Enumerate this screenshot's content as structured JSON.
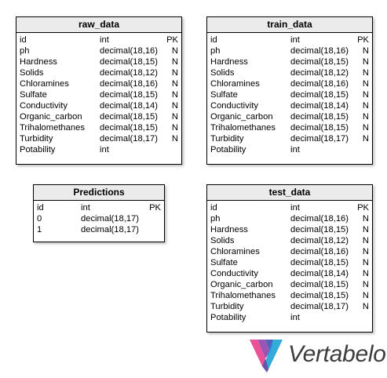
{
  "tables": {
    "raw_data": {
      "title": "raw_data",
      "columns": [
        {
          "name": "id",
          "type": "int",
          "flag": "PK"
        },
        {
          "name": "ph",
          "type": "decimal(18,16)",
          "flag": "N"
        },
        {
          "name": "Hardness",
          "type": "decimal(18,15)",
          "flag": "N"
        },
        {
          "name": "Solids",
          "type": "decimal(18,12)",
          "flag": "N"
        },
        {
          "name": "Chloramines",
          "type": "decimal(18,16)",
          "flag": "N"
        },
        {
          "name": "Sulfate",
          "type": "decimal(18,15)",
          "flag": "N"
        },
        {
          "name": "Conductivity",
          "type": "decimal(18,14)",
          "flag": "N"
        },
        {
          "name": "Organic_carbon",
          "type": "decimal(18,15)",
          "flag": "N"
        },
        {
          "name": "Trihalomethanes",
          "type": "decimal(18,15)",
          "flag": "N"
        },
        {
          "name": "Turbidity",
          "type": "decimal(18,17)",
          "flag": "N"
        },
        {
          "name": "Potability",
          "type": "int",
          "flag": ""
        }
      ]
    },
    "train_data": {
      "title": "train_data",
      "columns": [
        {
          "name": "id",
          "type": "int",
          "flag": "PK"
        },
        {
          "name": "ph",
          "type": "decimal(18,16)",
          "flag": "N"
        },
        {
          "name": "Hardness",
          "type": "decimal(18,15)",
          "flag": "N"
        },
        {
          "name": "Solids",
          "type": "decimal(18,12)",
          "flag": "N"
        },
        {
          "name": "Chloramines",
          "type": "decimal(18,16)",
          "flag": "N"
        },
        {
          "name": "Sulfate",
          "type": "decimal(18,15)",
          "flag": "N"
        },
        {
          "name": "Conductivity",
          "type": "decimal(18,14)",
          "flag": "N"
        },
        {
          "name": "Organic_carbon",
          "type": "decimal(18,15)",
          "flag": "N"
        },
        {
          "name": "Trihalomethanes",
          "type": "decimal(18,15)",
          "flag": "N"
        },
        {
          "name": "Turbidity",
          "type": "decimal(18,17)",
          "flag": "N"
        },
        {
          "name": "Potability",
          "type": "int",
          "flag": ""
        }
      ]
    },
    "predictions": {
      "title": "Predictions",
      "columns": [
        {
          "name": "id",
          "type": "int",
          "flag": "PK"
        },
        {
          "name": "0",
          "type": "decimal(18,17)",
          "flag": ""
        },
        {
          "name": "1",
          "type": "decimal(18,17)",
          "flag": ""
        }
      ]
    },
    "test_data": {
      "title": "test_data",
      "columns": [
        {
          "name": "id",
          "type": "int",
          "flag": "PK"
        },
        {
          "name": "ph",
          "type": "decimal(18,16)",
          "flag": "N"
        },
        {
          "name": "Hardness",
          "type": "decimal(18,15)",
          "flag": "N"
        },
        {
          "name": "Solids",
          "type": "decimal(18,12)",
          "flag": "N"
        },
        {
          "name": "Chloramines",
          "type": "decimal(18,16)",
          "flag": "N"
        },
        {
          "name": "Sulfate",
          "type": "decimal(18,15)",
          "flag": "N"
        },
        {
          "name": "Conductivity",
          "type": "decimal(18,14)",
          "flag": "N"
        },
        {
          "name": "Organic_carbon",
          "type": "decimal(18,15)",
          "flag": "N"
        },
        {
          "name": "Trihalomethanes",
          "type": "decimal(18,15)",
          "flag": "N"
        },
        {
          "name": "Turbidity",
          "type": "decimal(18,17)",
          "flag": "N"
        },
        {
          "name": "Potability",
          "type": "int",
          "flag": ""
        }
      ]
    }
  },
  "logo": {
    "text": "Vertabelo",
    "icon": "vertabelo-logo-icon",
    "colors": [
      "#e83e8c",
      "#8e44ad",
      "#3f51b5",
      "#1fa2d6"
    ]
  },
  "colors": {
    "header_bg": "#ebebeb",
    "border": "#000000"
  }
}
